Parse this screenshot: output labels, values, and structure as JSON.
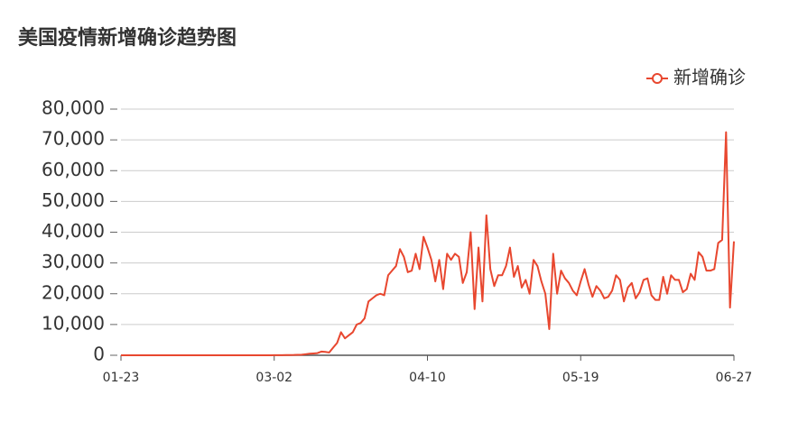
{
  "chart_data": {
    "type": "line",
    "title": "美国疫情新增确诊趋势图",
    "categories": [
      "01-23",
      null,
      null,
      null,
      null,
      null,
      null,
      null,
      null,
      null,
      null,
      null,
      null,
      null,
      null,
      null,
      null,
      null,
      null,
      null,
      null,
      null,
      null,
      null,
      null,
      null,
      null,
      null,
      null,
      null,
      null,
      null,
      null,
      null,
      null,
      null,
      null,
      null,
      null,
      "03-02",
      null,
      null,
      null,
      null,
      null,
      null,
      null,
      null,
      null,
      null,
      null,
      null,
      null,
      null,
      null,
      null,
      null,
      null,
      null,
      null,
      null,
      null,
      null,
      null,
      null,
      null,
      null,
      null,
      null,
      null,
      null,
      null,
      null,
      null,
      null,
      null,
      null,
      null,
      "04-10",
      null,
      null,
      null,
      null,
      null,
      null,
      null,
      null,
      null,
      null,
      null,
      null,
      null,
      null,
      null,
      null,
      null,
      null,
      null,
      null,
      null,
      null,
      null,
      null,
      null,
      null,
      null,
      null,
      null,
      null,
      null,
      null,
      null,
      null,
      null,
      null,
      null,
      null,
      "05-19",
      null,
      null,
      null,
      null,
      null,
      null,
      null,
      null,
      null,
      null,
      null,
      null,
      null,
      null,
      null,
      null,
      null,
      null,
      null,
      null,
      null,
      null,
      null,
      null,
      null,
      null,
      null,
      null,
      null,
      null,
      null,
      null,
      null,
      null,
      null,
      null,
      null,
      null,
      "06-27"
    ],
    "series": [
      {
        "name": "新增确诊",
        "color": "#e8472f",
        "values": [
          0,
          0,
          1,
          0,
          0,
          2,
          0,
          0,
          1,
          0,
          0,
          0,
          0,
          0,
          0,
          0,
          0,
          0,
          0,
          0,
          0,
          0,
          1,
          0,
          0,
          0,
          0,
          0,
          0,
          0,
          0,
          0,
          0,
          1,
          0,
          0,
          3,
          7,
          13,
          20,
          30,
          40,
          60,
          80,
          100,
          150,
          200,
          350,
          500,
          600,
          700,
          1200,
          1100,
          900,
          2500,
          4000,
          7500,
          5500,
          6500,
          7500,
          10000,
          10500,
          12000,
          17500,
          18500,
          19500,
          20000,
          19500,
          26000,
          27500,
          29000,
          34500,
          32000,
          27000,
          27500,
          33000,
          28000,
          38500,
          35000,
          31000,
          24000,
          31000,
          21500,
          33000,
          31000,
          33000,
          32000,
          23500,
          27000,
          40000,
          15000,
          35000,
          17500,
          45500,
          28000,
          22500,
          26000,
          26000,
          29000,
          35000,
          25500,
          29000,
          22000,
          24500,
          20000,
          31000,
          29000,
          24000,
          20000,
          8500,
          33000,
          20000,
          27500,
          25000,
          23500,
          21000,
          19500,
          24000,
          28000,
          23000,
          19000,
          22500,
          21000,
          18500,
          19000,
          21000,
          26000,
          24500,
          17500,
          22000,
          23500,
          18500,
          20500,
          24500,
          25000,
          19500,
          18000,
          18000,
          25500,
          20000,
          26000,
          24500,
          24500,
          20500,
          21500,
          26500,
          24500,
          33500,
          32000,
          27500,
          27500,
          28000,
          36500,
          37500,
          72500,
          15500,
          37000
        ]
      }
    ],
    "ylim": [
      0,
      80000
    ],
    "yticks": [
      0,
      {
        "value": 10000,
        "label": "10,000"
      },
      {
        "value": 20000,
        "label": "20,000"
      },
      {
        "value": 30000,
        "label": "30,000"
      },
      {
        "value": 40000,
        "label": "40,000"
      },
      {
        "value": 50000,
        "label": "50,000"
      },
      {
        "value": 60000,
        "label": "60,000"
      },
      {
        "value": 70000,
        "label": "70,000"
      },
      {
        "value": 80000,
        "label": "80,000"
      }
    ],
    "grid": true,
    "legend": "top-right"
  }
}
